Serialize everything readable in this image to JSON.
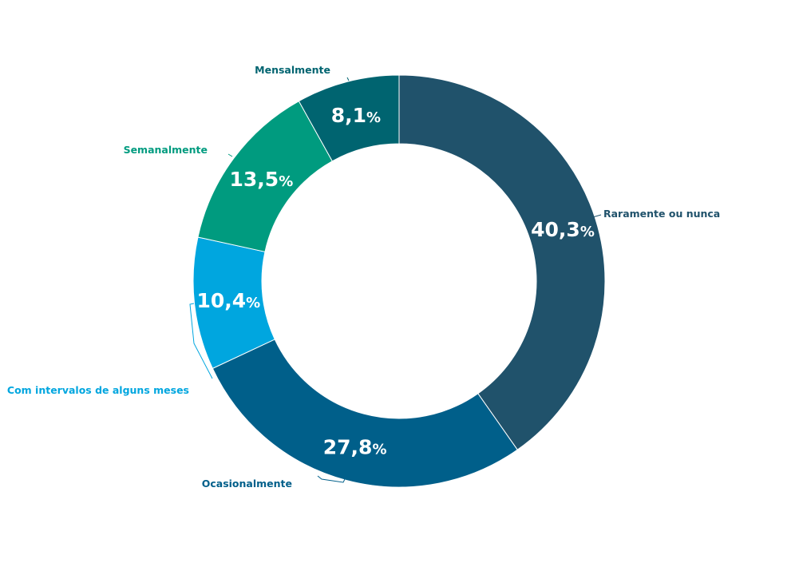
{
  "chart_data": {
    "type": "pie",
    "title": "",
    "categories": [
      "Raramente ou nunca",
      "Ocasionalmente",
      "Com intervalos de alguns meses",
      "Semanalmente",
      "Mensalmente"
    ],
    "values": [
      40.3,
      27.8,
      10.4,
      13.5,
      8.1
    ],
    "value_labels": [
      "40,3",
      "27,8",
      "10,4",
      "13,5",
      "8,1"
    ],
    "unit": "%",
    "colors": [
      "#20526b",
      "#005f8a",
      "#00a6df",
      "#009b7f",
      "#006470"
    ],
    "label_colors": [
      "#20526b",
      "#005f8a",
      "#00a6df",
      "#009b7f",
      "#006470"
    ],
    "donut": true,
    "start_angle_deg": 0,
    "direction": "clockwise",
    "legend": "none"
  }
}
